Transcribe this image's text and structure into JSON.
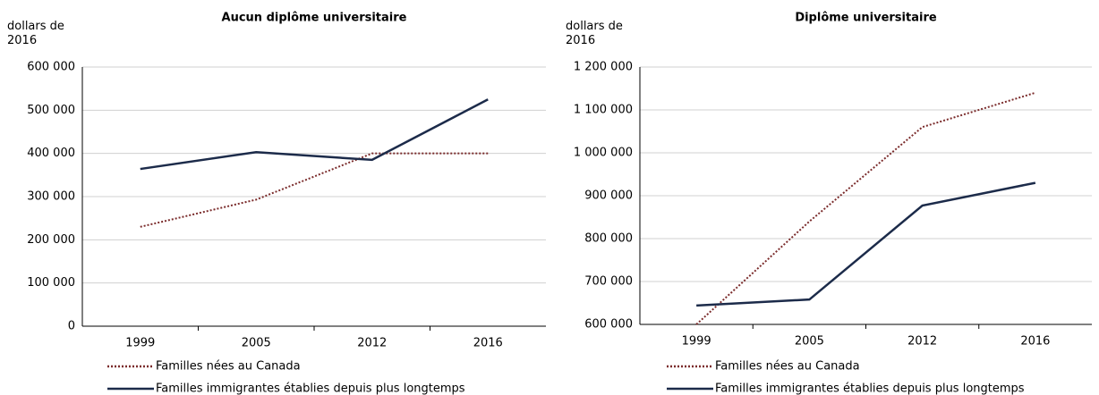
{
  "chart_data": [
    {
      "type": "line",
      "title": "Aucun diplôme universitaire",
      "y_label": "dollars de 2016",
      "categories": [
        "1999",
        "2005",
        "2012",
        "2016"
      ],
      "series": [
        {
          "name": "Familles nées au Canada",
          "color": "#7b2c2c",
          "line_style": "dotted",
          "values": [
            230000,
            293000,
            400000,
            400000
          ]
        },
        {
          "name": "Familles immigrantes établies depuis plus longtemps",
          "color": "#1c2b4a",
          "line_style": "solid",
          "values": [
            364000,
            403000,
            385000,
            525000
          ]
        }
      ],
      "ylim": [
        0,
        600000
      ],
      "yticks": [
        0,
        {
          "value": 100000,
          "label": "100 000"
        },
        {
          "value": 200000,
          "label": "200 000"
        },
        {
          "value": 300000,
          "label": "300 000"
        },
        {
          "value": 400000,
          "label": "400 000"
        },
        {
          "value": 500000,
          "label": "500 000"
        },
        {
          "value": 600000,
          "label": "600 000"
        }
      ],
      "grid": true
    },
    {
      "type": "line",
      "title": "Diplôme universitaire",
      "y_label": "dollars de 2016",
      "categories": [
        "1999",
        "2005",
        "2012",
        "2016"
      ],
      "series": [
        {
          "name": "Familles nées au Canada",
          "color": "#7b2c2c",
          "line_style": "dotted",
          "values": [
            600000,
            840000,
            1060000,
            1140000
          ]
        },
        {
          "name": "Familles immigrantes établies depuis plus longtemps",
          "color": "#1c2b4a",
          "line_style": "solid",
          "values": [
            644000,
            658000,
            877000,
            930000
          ]
        }
      ],
      "ylim": [
        600000,
        1200000
      ],
      "yticks": [
        {
          "value": 600000,
          "label": "600 000"
        },
        {
          "value": 700000,
          "label": "700 000"
        },
        {
          "value": 800000,
          "label": "800 000"
        },
        {
          "value": 900000,
          "label": "900 000"
        },
        {
          "value": 1000000,
          "label": "1 000 000"
        },
        {
          "value": 1100000,
          "label": "1 100 000"
        },
        {
          "value": 1200000,
          "label": "1 200 000"
        }
      ],
      "grid": true
    }
  ]
}
